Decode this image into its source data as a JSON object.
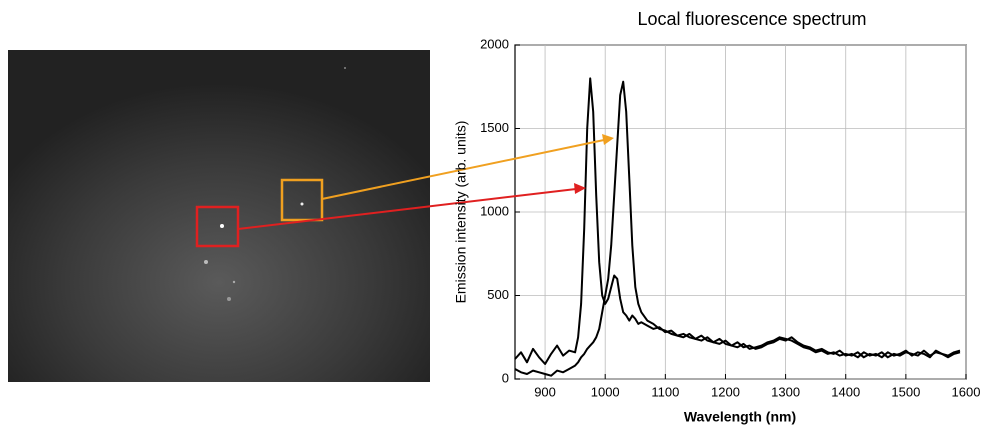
{
  "chart_data": {
    "type": "line",
    "title": "Local fluorescence spectrum",
    "x_label": "Wavelength  (nm)",
    "y_label": "Emission intensity  (arb. units)",
    "x": [
      850,
      860,
      870,
      880,
      890,
      900,
      910,
      920,
      930,
      940,
      950,
      955,
      960,
      965,
      970,
      975,
      980,
      985,
      990,
      995,
      1000,
      1005,
      1010,
      1015,
      1020,
      1025,
      1030,
      1035,
      1040,
      1045,
      1050,
      1055,
      1060,
      1070,
      1080,
      1090,
      1100,
      1110,
      1120,
      1130,
      1140,
      1150,
      1160,
      1170,
      1180,
      1190,
      1200,
      1210,
      1220,
      1230,
      1240,
      1250,
      1260,
      1270,
      1280,
      1290,
      1300,
      1310,
      1320,
      1330,
      1340,
      1350,
      1360,
      1370,
      1380,
      1390,
      1400,
      1410,
      1420,
      1430,
      1440,
      1450,
      1460,
      1470,
      1480,
      1490,
      1500,
      1510,
      1520,
      1530,
      1540,
      1550,
      1560,
      1570,
      1580,
      1590
    ],
    "series": [
      {
        "color": "#000000",
        "values": [
          120,
          160,
          100,
          180,
          130,
          90,
          150,
          200,
          140,
          170,
          160,
          250,
          450,
          900,
          1500,
          1800,
          1600,
          1100,
          700,
          500,
          450,
          480,
          550,
          620,
          600,
          480,
          400,
          380,
          350,
          380,
          360,
          330,
          340,
          320,
          300,
          310,
          280,
          290,
          260,
          270,
          250,
          240,
          260,
          230,
          220,
          240,
          210,
          200,
          220,
          190,
          200,
          180,
          190,
          210,
          220,
          240,
          230,
          250,
          220,
          200,
          190,
          170,
          180,
          160,
          150,
          170,
          140,
          150,
          130,
          160,
          140,
          150,
          130,
          160,
          140,
          150,
          170,
          140,
          160,
          150,
          130,
          170,
          150,
          140,
          160,
          170
        ]
      },
      {
        "color": "#000000",
        "values": [
          60,
          40,
          30,
          50,
          40,
          30,
          20,
          50,
          40,
          60,
          80,
          100,
          130,
          150,
          180,
          200,
          220,
          250,
          300,
          400,
          500,
          600,
          800,
          1100,
          1400,
          1700,
          1780,
          1600,
          1200,
          800,
          550,
          450,
          400,
          350,
          330,
          300,
          290,
          270,
          260,
          250,
          270,
          240,
          230,
          250,
          220,
          210,
          230,
          200,
          190,
          210,
          180,
          190,
          200,
          220,
          230,
          250,
          240,
          230,
          210,
          190,
          180,
          160,
          170,
          150,
          160,
          140,
          150,
          140,
          160,
          130,
          150,
          140,
          160,
          130,
          150,
          140,
          160,
          150,
          140,
          170,
          140,
          160,
          150,
          130,
          150,
          160
        ]
      }
    ],
    "xlim": [
      850,
      1600
    ],
    "xticks": [
      900,
      1000,
      1100,
      1200,
      1300,
      1400,
      1500,
      1600
    ],
    "ylim": [
      0,
      2000
    ],
    "yticks": [
      0,
      500,
      1000,
      1500,
      2000
    ],
    "grid": true
  }
}
